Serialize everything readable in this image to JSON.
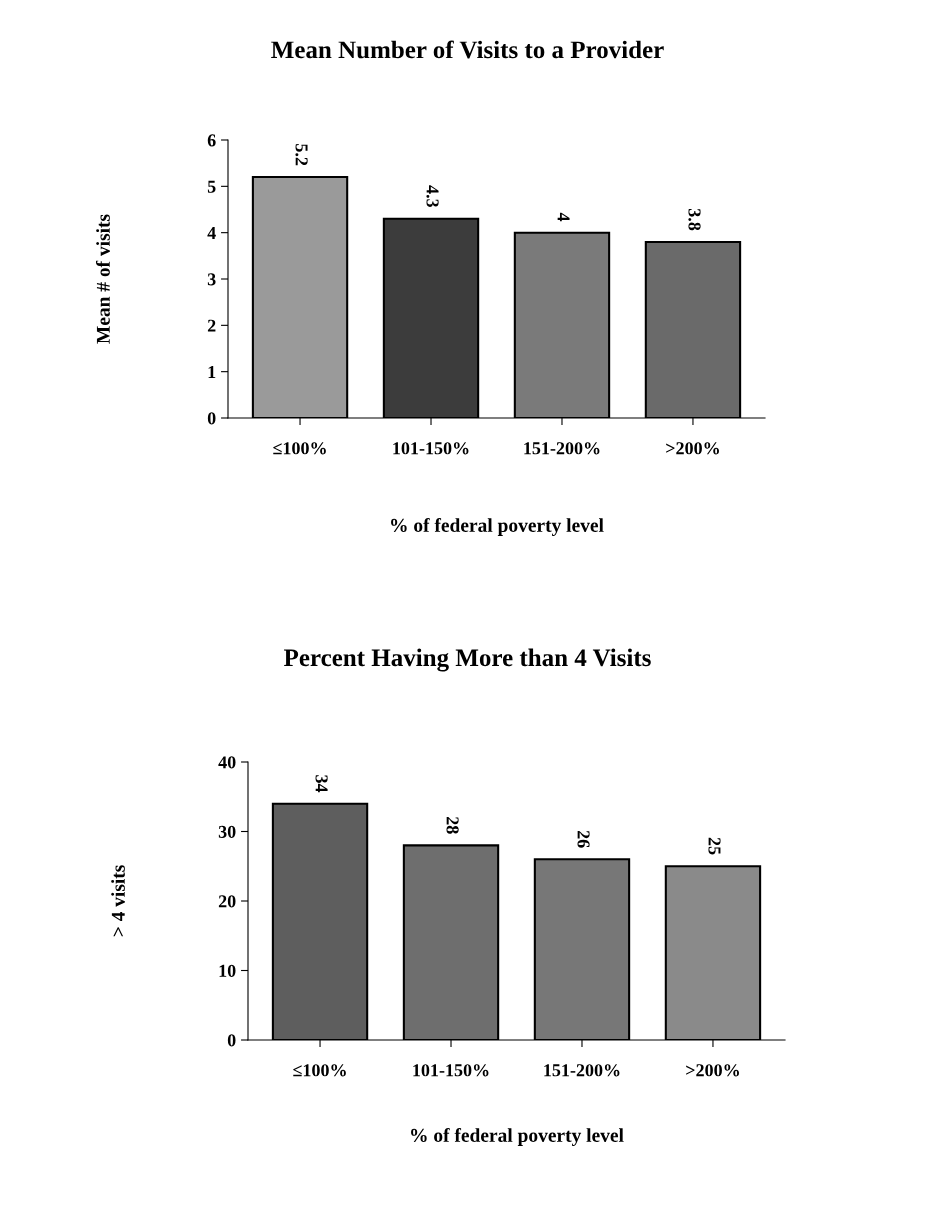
{
  "chart_data": [
    {
      "type": "bar",
      "title": "Mean Number of Visits to a Provider",
      "xlabel": "% of federal poverty level",
      "ylabel": "Mean # of visits",
      "categories": [
        "≤100%",
        "101-150%",
        "151-200%",
        ">200%"
      ],
      "colors": [
        "#9a9a9a",
        "#3c3c3c",
        "#7a7a7a",
        "#6a6a6a"
      ],
      "values": [
        5.2,
        4.3,
        4,
        3.8
      ],
      "ylim": [
        0,
        6
      ],
      "yticks": [
        0,
        1,
        2,
        3,
        4,
        5,
        6
      ],
      "data_labels": true,
      "grid": false,
      "legend": false
    },
    {
      "type": "bar",
      "title": "Percent Having More than 4 Visits",
      "xlabel": "% of federal poverty level",
      "ylabel": "> 4 visits",
      "categories": [
        "≤100%",
        "101-150%",
        "151-200%",
        ">200%"
      ],
      "colors": [
        "#5e5e5e",
        "#6e6e6e",
        "#777777",
        "#8a8a8a"
      ],
      "values": [
        34,
        28,
        26,
        25
      ],
      "ylim": [
        0,
        40
      ],
      "yticks": [
        0,
        10,
        20,
        30,
        40
      ],
      "data_labels": true,
      "grid": false,
      "legend": false
    }
  ]
}
